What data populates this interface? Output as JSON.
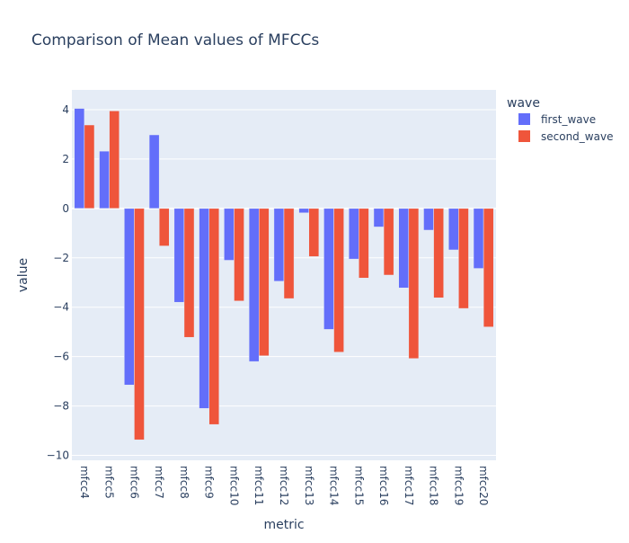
{
  "chart_data": {
    "type": "bar",
    "title": "Comparison of Mean values of MFCCs",
    "xlabel": "metric",
    "ylabel": "value",
    "legend_title": "wave",
    "legend_position": "top-right",
    "grid": true,
    "ylim": [
      -10.2,
      4.8
    ],
    "yticks": [
      4,
      2,
      0,
      -2,
      -4,
      -6,
      -8,
      -10
    ],
    "ytick_labels": [
      "4",
      "2",
      "0",
      "−2",
      "−4",
      "−6",
      "−8",
      "−10"
    ],
    "categories": [
      "mfcc4",
      "mfcc5",
      "mfcc6",
      "mfcc7",
      "mfcc8",
      "mfcc9",
      "mfcc10",
      "mfcc11",
      "mfcc12",
      "mfcc13",
      "mfcc14",
      "mfcc15",
      "mfcc16",
      "mfcc17",
      "mfcc18",
      "mfcc19",
      "mfcc20"
    ],
    "series": [
      {
        "name": "first_wave",
        "color": "#636efa",
        "values": [
          4.05,
          2.32,
          -7.15,
          2.98,
          -3.8,
          -8.1,
          -2.1,
          -6.2,
          -2.95,
          -0.18,
          -4.9,
          -2.05,
          -0.75,
          -3.22,
          -0.88,
          -1.68,
          -2.43
        ]
      },
      {
        "name": "second_wave",
        "color": "#ef553b",
        "values": [
          3.38,
          3.95,
          -9.37,
          -1.52,
          -5.22,
          -8.75,
          -3.75,
          -5.97,
          -3.65,
          -1.95,
          -5.82,
          -2.82,
          -2.7,
          -6.08,
          -3.62,
          -4.05,
          -4.8
        ]
      }
    ]
  }
}
